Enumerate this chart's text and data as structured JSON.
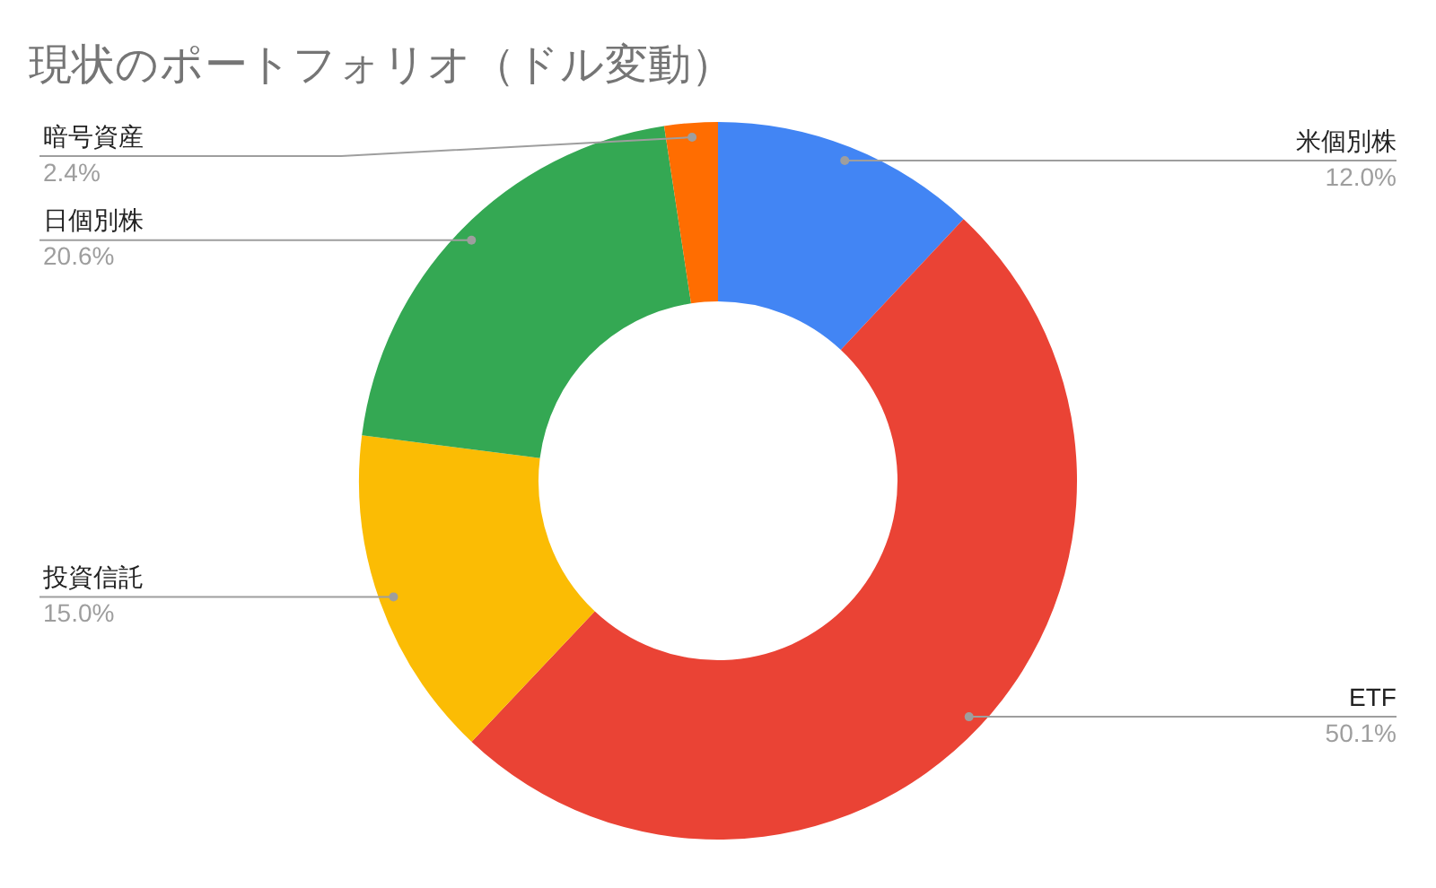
{
  "chart_data": {
    "type": "donut",
    "title": "現状のポートフォリオ（ドル変動）",
    "categories": [
      "米個別株",
      "ETF",
      "投資信託",
      "日個別株",
      "暗号資産"
    ],
    "values": [
      12.0,
      50.1,
      15.0,
      20.6,
      2.4
    ],
    "colors": [
      "#4285f4",
      "#ea4335",
      "#fbbc04",
      "#34a853",
      "#ff6d01"
    ],
    "value_labels": [
      "12.0%",
      "50.1%",
      "15.0%",
      "20.6%",
      "2.4%"
    ],
    "legend": false
  }
}
